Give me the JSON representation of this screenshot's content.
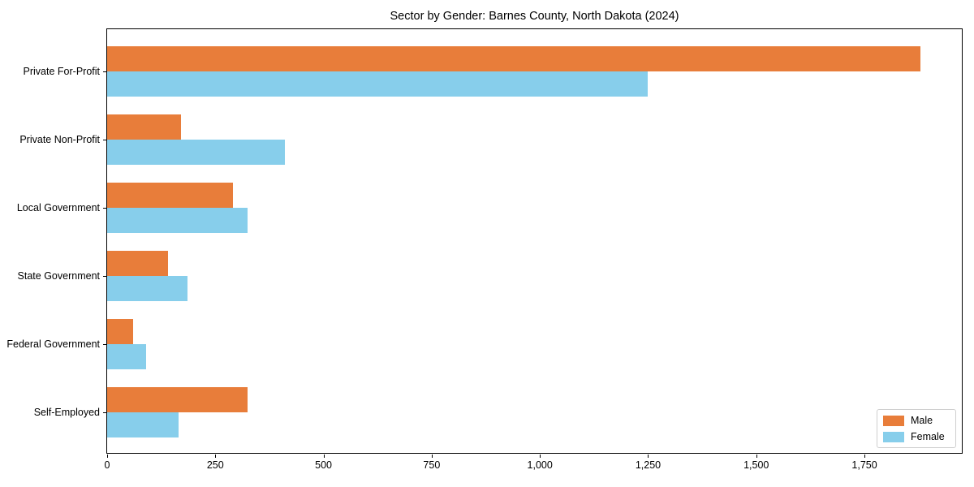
{
  "chart_data": {
    "type": "bar",
    "orientation": "horizontal",
    "title": "Sector by Gender: Barnes County, North Dakota (2024)",
    "categories": [
      "Private For-Profit",
      "Private Non-Profit",
      "Local Government",
      "State Government",
      "Federal Government",
      "Self-Employed"
    ],
    "series": [
      {
        "name": "Male",
        "color": "#E87D3A",
        "values": [
          1880,
          170,
          290,
          140,
          60,
          325
        ]
      },
      {
        "name": "Female",
        "color": "#87CEEB",
        "values": [
          1250,
          410,
          325,
          185,
          90,
          165
        ]
      }
    ],
    "xlabel": "",
    "ylabel": "",
    "xlim": [
      0,
      1975
    ],
    "xticks": [
      0,
      250,
      500,
      750,
      1000,
      1250,
      1500,
      1750
    ],
    "xtick_labels": [
      "0",
      "250",
      "500",
      "750",
      "1,000",
      "1,250",
      "1,500",
      "1,750"
    ],
    "grid": false,
    "legend_position": "lower right",
    "frame": true
  }
}
